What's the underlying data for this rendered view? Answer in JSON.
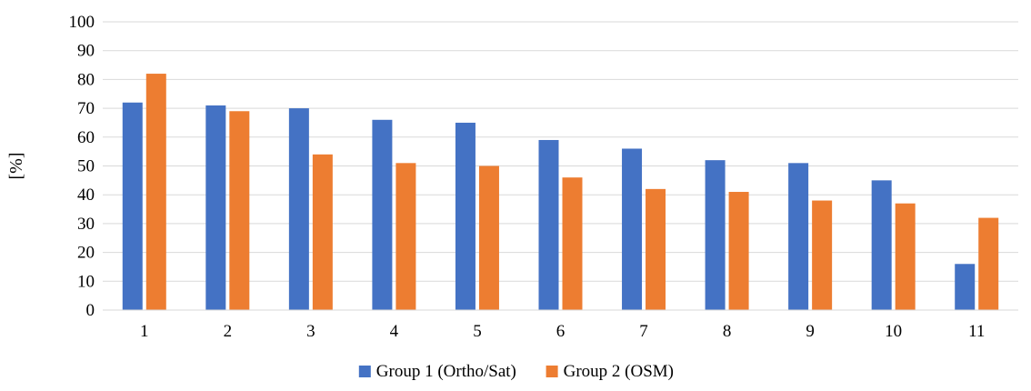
{
  "chart_data": {
    "type": "bar",
    "title": "",
    "xlabel": "",
    "ylabel": "[%]",
    "ylim": [
      0,
      100
    ],
    "yticks": [
      0,
      10,
      20,
      30,
      40,
      50,
      60,
      70,
      80,
      90,
      100
    ],
    "categories": [
      "1",
      "2",
      "3",
      "4",
      "5",
      "6",
      "7",
      "8",
      "9",
      "10",
      "11"
    ],
    "series": [
      {
        "name": "Group 1 (Ortho/Sat)",
        "color": "#4472C4",
        "values": [
          72,
          71,
          70,
          66,
          65,
          59,
          56,
          52,
          51,
          45,
          16
        ]
      },
      {
        "name": "Group 2 (OSM)",
        "color": "#ED7D31",
        "values": [
          82,
          69,
          54,
          51,
          50,
          46,
          42,
          41,
          38,
          37,
          32
        ]
      }
    ],
    "grid": true,
    "legend_position": "bottom-center"
  }
}
